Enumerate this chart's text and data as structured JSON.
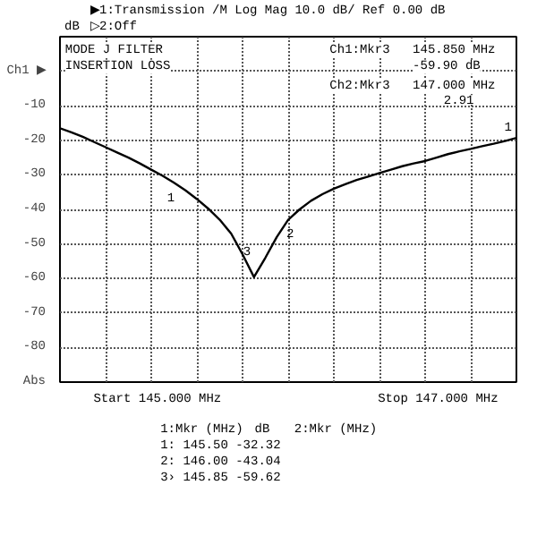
{
  "chart_data": {
    "type": "line",
    "ylabel": "dB",
    "categories": [
      null,
      null,
      null,
      null,
      null,
      null,
      null,
      null,
      null,
      null,
      null,
      null,
      null,
      null,
      null,
      null,
      null,
      null,
      null,
      null,
      null,
      null,
      null,
      null,
      null,
      null,
      null,
      null,
      null,
      null,
      null,
      null,
      null,
      null,
      null,
      null,
      null,
      null,
      null,
      null,
      null
    ],
    "series": [
      {
        "color": "#000000",
        "values": [
          -16.5,
          -17.7,
          -19,
          -20.5,
          -22,
          -23.5,
          -25,
          -26.7,
          -28.5,
          -30.3,
          -32.3,
          -34.5,
          -37,
          -39.8,
          -43,
          -47,
          -53,
          -59.6,
          -54,
          -48,
          -43,
          -40,
          -37.5,
          -35.6,
          -34,
          -32.7,
          -31.5,
          -30.5,
          -29.5,
          -28.5,
          -27.5,
          -26.7,
          -26,
          -25,
          -24,
          -23.2,
          -22.5,
          -21.7,
          -21,
          -20.2,
          -19.3
        ]
      }
    ],
    "ylim": [
      -90,
      10
    ],
    "yticks": [
      {
        "value": 10,
        "label": null
      },
      {
        "value": 0,
        "label": "Ch1 ▶"
      },
      -10,
      -20,
      -30,
      -40,
      -50,
      -60,
      -70,
      -80,
      {
        "value": -90,
        "label": "Abs"
      }
    ],
    "tick_labels": "y",
    "grid": true,
    "marker": "none",
    "line_style": "solid",
    "annotations": [
      "▶1:Transmission  /M Log Mag  10.0 dB/  Ref   0.00 dB",
      "▷2:Off",
      "MODE J FILTER",
      "INSERTION LOSS",
      "Ch1:Mkr3",
      "145.850 MHz",
      "-59.90 dB",
      "Ch2:Mkr3",
      "147.000 MHz",
      "2.91",
      "Start 145.000 MHz",
      "Stop 147.000 MHz",
      "1:Mkr (MHz)",
      "dB",
      "1:   145.50    -32.32",
      "2:   146.00    -43.04",
      "3›   145.85    -59.62",
      "2:Mkr (MHz)",
      "1",
      "2",
      "3",
      "1"
    ]
  }
}
